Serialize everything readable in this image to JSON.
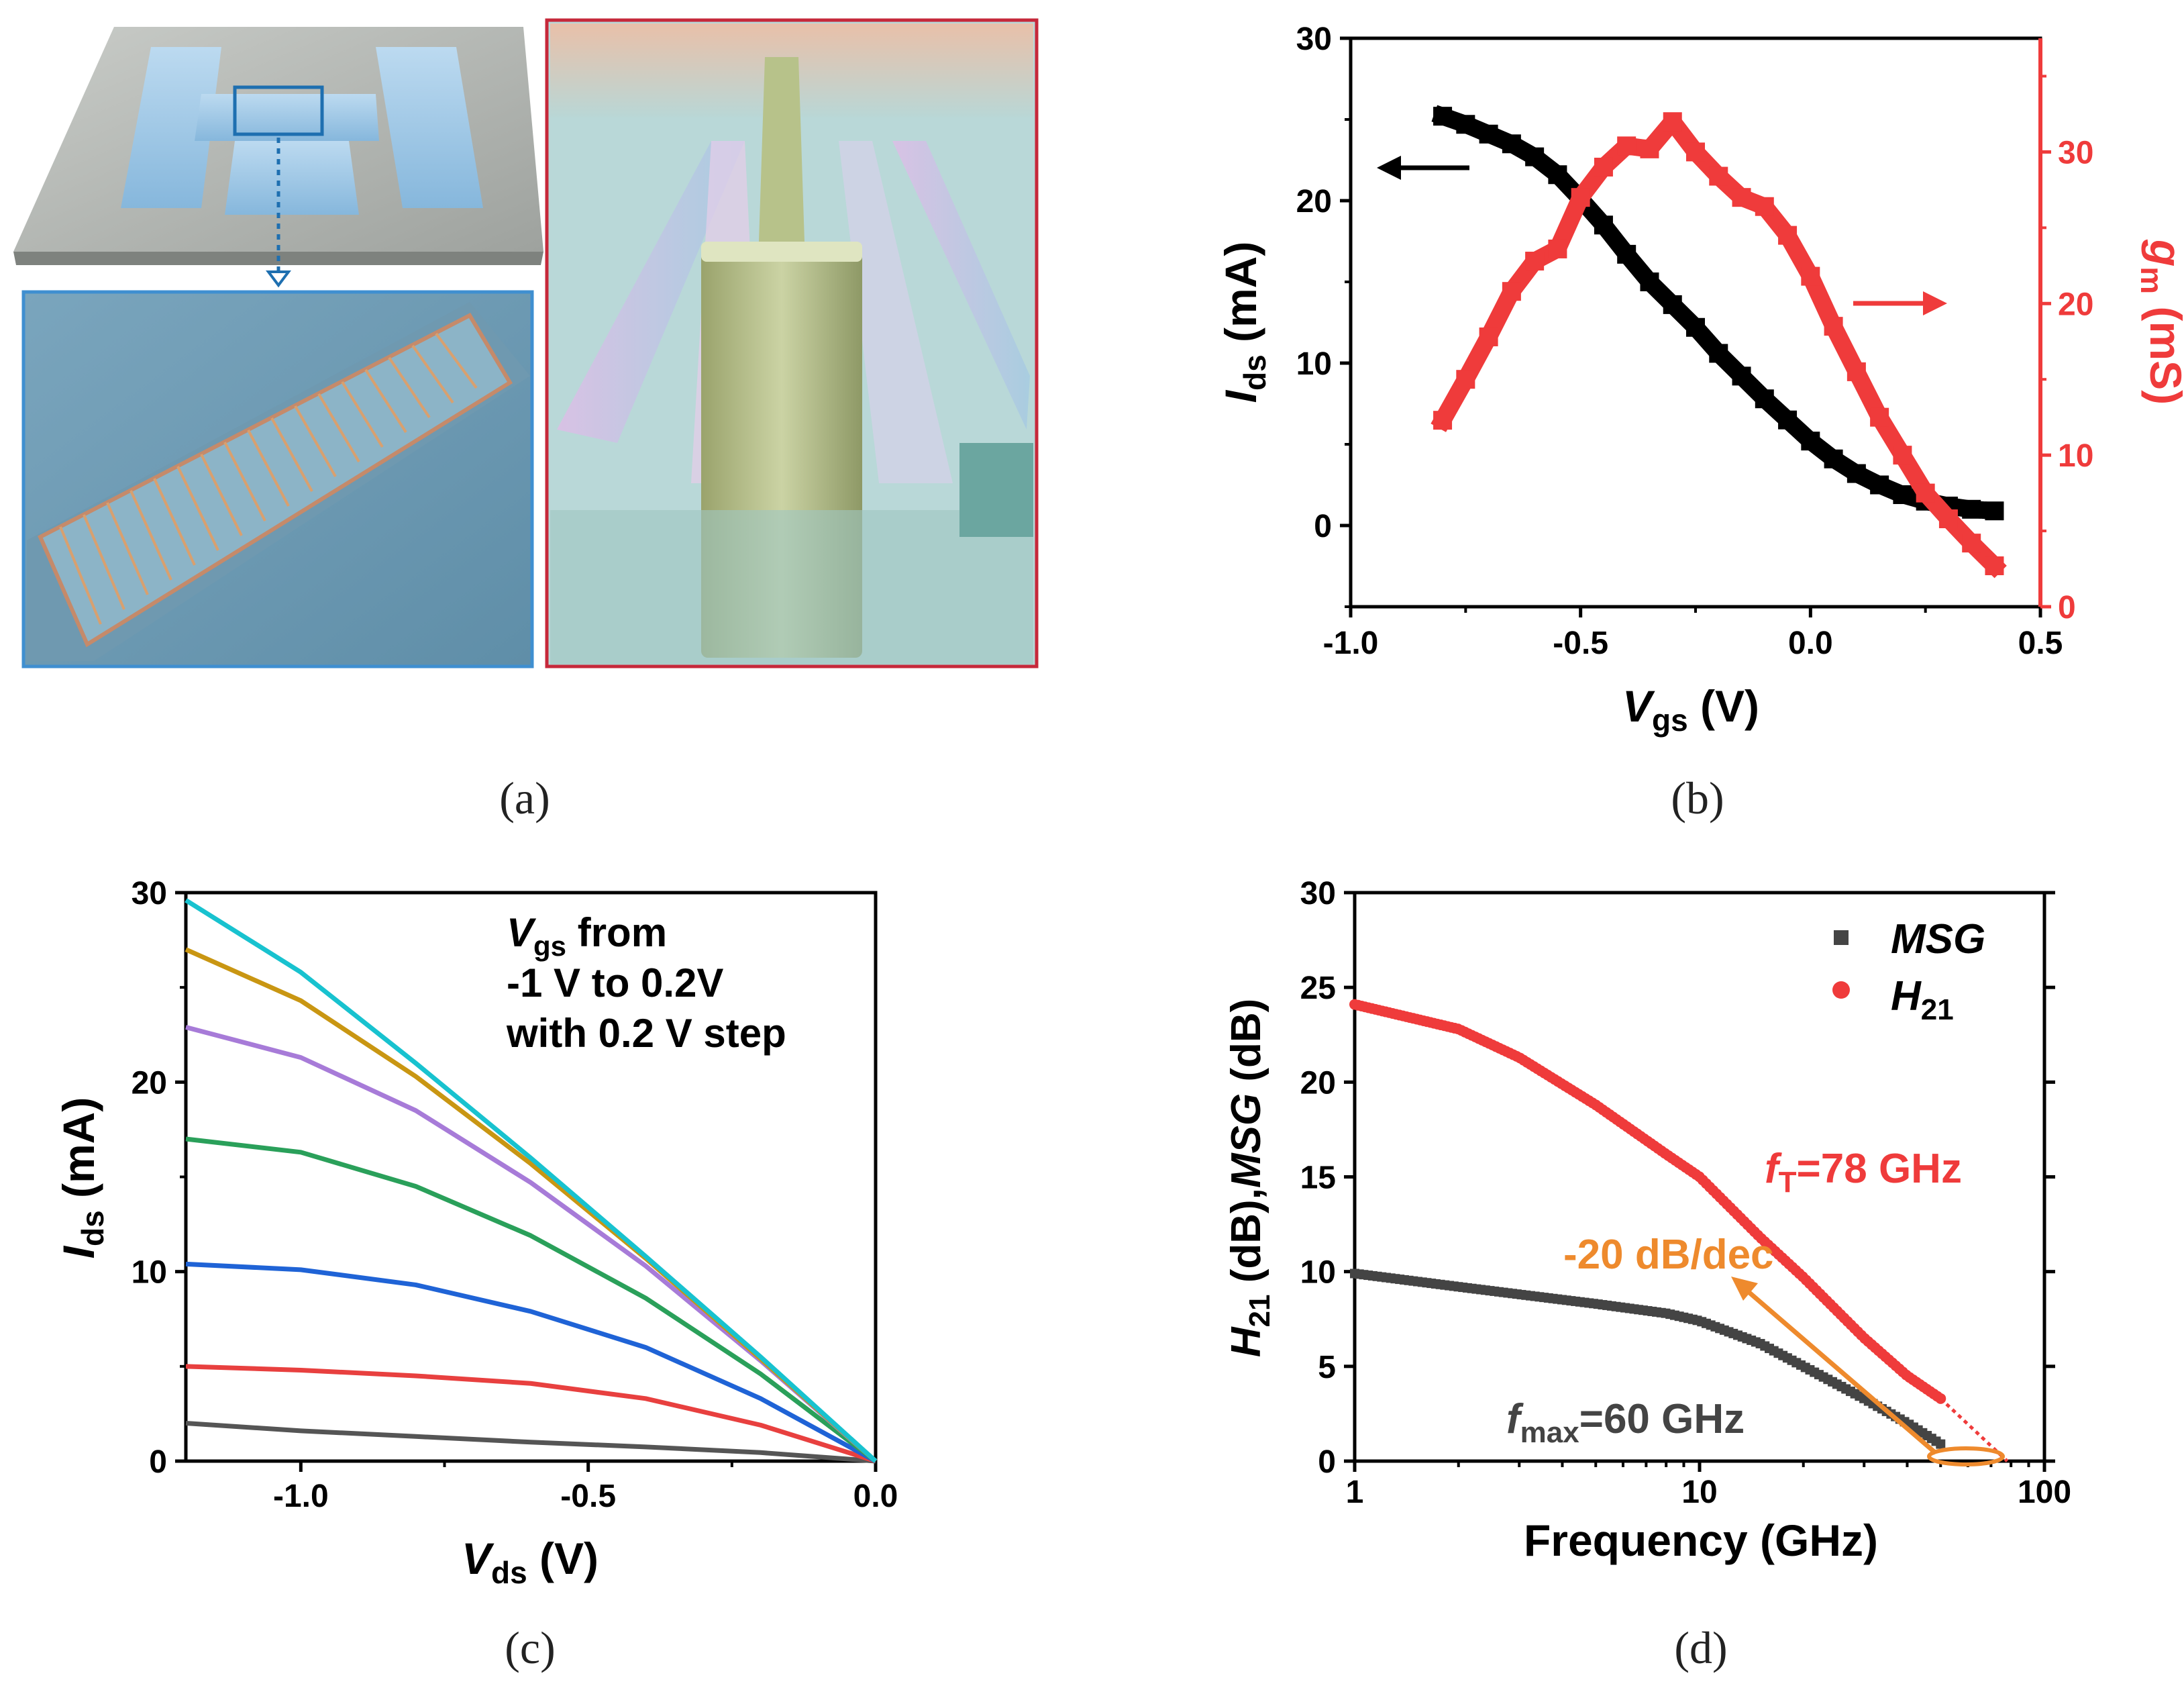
{
  "captions": {
    "a": "(a)",
    "b": "(b)",
    "c": "(c)",
    "d": "(d)"
  },
  "colors": {
    "black": "#000000",
    "red": "#ef3b3b",
    "orange": "#ee8a2d",
    "dark_gray": "#444444",
    "c_gray": "#555555",
    "c_red": "#e8403f",
    "c_blue": "#1f63d6",
    "c_green": "#2aa05a",
    "c_purple": "#a77bd8",
    "c_gold": "#c99612",
    "c_cyan": "#18c2cf"
  },
  "chart_data": [
    {
      "id": "b",
      "type": "line",
      "title": "",
      "xlabel": "Vgs (V)",
      "ylabel_left": "Ids (mA)",
      "ylabel_right": "gm (mS)",
      "xlim": [
        -1.0,
        0.5
      ],
      "ylim_left": [
        -5,
        30
      ],
      "ylim_right": [
        0,
        37.5
      ],
      "x_ticks": [
        "-1.0",
        "-0.5",
        "0.0",
        "0.5"
      ],
      "y_ticks_left": [
        "0",
        "10",
        "20",
        "30"
      ],
      "y_ticks_right": [
        "0",
        "10",
        "20",
        "30"
      ],
      "series": [
        {
          "name": "Ids",
          "axis": "left",
          "color": "#000000",
          "x": [
            -0.8,
            -0.75,
            -0.7,
            -0.65,
            -0.6,
            -0.55,
            -0.5,
            -0.45,
            -0.4,
            -0.35,
            -0.3,
            -0.25,
            -0.2,
            -0.15,
            -0.1,
            -0.05,
            0.0,
            0.05,
            0.1,
            0.15,
            0.2,
            0.25,
            0.3,
            0.35,
            0.4
          ],
          "y": [
            25.2,
            24.7,
            24.1,
            23.5,
            22.7,
            21.6,
            20.1,
            18.5,
            16.7,
            15.0,
            13.6,
            12.2,
            10.6,
            9.2,
            7.8,
            6.5,
            5.2,
            4.1,
            3.2,
            2.5,
            1.9,
            1.5,
            1.2,
            1.0,
            0.9
          ]
        },
        {
          "name": "gm",
          "axis": "right",
          "color": "#ef3b3b",
          "x": [
            -0.8,
            -0.75,
            -0.7,
            -0.65,
            -0.6,
            -0.55,
            -0.5,
            -0.45,
            -0.4,
            -0.35,
            -0.3,
            -0.25,
            -0.2,
            -0.15,
            -0.1,
            -0.05,
            0.0,
            0.05,
            0.1,
            0.15,
            0.2,
            0.25,
            0.3,
            0.35,
            0.4
          ],
          "y": [
            12.3,
            15.0,
            17.8,
            20.8,
            22.8,
            23.6,
            27.0,
            29.0,
            30.4,
            30.2,
            32.0,
            30.0,
            28.4,
            27.0,
            26.4,
            24.5,
            21.8,
            18.5,
            15.5,
            12.5,
            10.0,
            7.5,
            5.8,
            4.2,
            2.7
          ]
        }
      ],
      "annotations": [
        "left arrow -> Ids",
        "right arrow -> gm"
      ]
    },
    {
      "id": "c",
      "type": "line",
      "title": "",
      "xlabel": "Vds (V)",
      "ylabel": "Ids (mA)",
      "xlim": [
        -1.2,
        0.0
      ],
      "ylim": [
        0,
        30
      ],
      "x_ticks": [
        "-1.0",
        "-0.5",
        "0.0"
      ],
      "y_ticks": [
        "0",
        "10",
        "20",
        "30"
      ],
      "legend_text": {
        "line1_sub": "gs",
        "line1_rest": " from",
        "line2": "-1 V to 0.2V",
        "line3": "with 0.2 V step"
      },
      "series": [
        {
          "name": "Vgs=-1.0V",
          "color": "#555555",
          "x": [
            -1.2,
            -1.0,
            -0.8,
            -0.6,
            -0.4,
            -0.2,
            0.0
          ],
          "y": [
            2.0,
            1.6,
            1.3,
            1.0,
            0.75,
            0.45,
            0.0
          ]
        },
        {
          "name": "Vgs=-0.8V",
          "color": "#e8403f",
          "x": [
            -1.2,
            -1.0,
            -0.8,
            -0.6,
            -0.4,
            -0.2,
            0.0
          ],
          "y": [
            5.0,
            4.8,
            4.5,
            4.1,
            3.3,
            1.9,
            0.0
          ]
        },
        {
          "name": "Vgs=-0.6V",
          "color": "#1f63d6",
          "x": [
            -1.2,
            -1.0,
            -0.8,
            -0.6,
            -0.4,
            -0.2,
            0.0
          ],
          "y": [
            10.4,
            10.1,
            9.3,
            7.9,
            6.0,
            3.3,
            0.0
          ]
        },
        {
          "name": "Vgs=-0.4V",
          "color": "#2aa05a",
          "x": [
            -1.2,
            -1.0,
            -0.8,
            -0.6,
            -0.4,
            -0.2,
            0.0
          ],
          "y": [
            17.0,
            16.3,
            14.5,
            11.9,
            8.6,
            4.6,
            0.0
          ]
        },
        {
          "name": "Vgs=-0.2V",
          "color": "#a77bd8",
          "x": [
            -1.2,
            -1.0,
            -0.8,
            -0.6,
            -0.4,
            -0.2,
            0.0
          ],
          "y": [
            22.9,
            21.3,
            18.5,
            14.7,
            10.3,
            5.3,
            0.0
          ]
        },
        {
          "name": "Vgs=0.0V",
          "color": "#c99612",
          "x": [
            -1.2,
            -1.0,
            -0.8,
            -0.6,
            -0.4,
            -0.2,
            0.0
          ],
          "y": [
            27.0,
            24.3,
            20.3,
            15.7,
            10.7,
            5.4,
            0.0
          ]
        },
        {
          "name": "Vgs=0.2V",
          "color": "#18c2cf",
          "x": [
            -1.2,
            -1.0,
            -0.8,
            -0.6,
            -0.4,
            -0.2,
            0.0
          ],
          "y": [
            29.6,
            25.8,
            21.0,
            16.0,
            10.8,
            5.5,
            0.0
          ]
        }
      ]
    },
    {
      "id": "d",
      "type": "scatter",
      "title": "",
      "xlabel": "Frequency (GHz)",
      "ylabel": "H21 (dB),MSG (dB)",
      "xscale": "log",
      "xlim": [
        1,
        100
      ],
      "ylim": [
        0,
        30
      ],
      "x_ticks": [
        "1",
        "10",
        "100"
      ],
      "y_ticks": [
        "0",
        "5",
        "10",
        "15",
        "20",
        "25",
        "30"
      ],
      "legend": [
        {
          "label": "MSG",
          "color": "#444444"
        },
        {
          "label": "H",
          "sub": "21",
          "color": "#ef3b3b"
        }
      ],
      "legend_position": "top-right",
      "series": [
        {
          "name": "MSG",
          "color": "#444444",
          "x": [
            1,
            2,
            3,
            5,
            8,
            10,
            15,
            20,
            30,
            40,
            50
          ],
          "y": [
            9.9,
            9.2,
            8.8,
            8.3,
            7.8,
            7.4,
            6.2,
            5.0,
            3.3,
            2.0,
            0.9
          ]
        },
        {
          "name": "H21",
          "color": "#ef3b3b",
          "x": [
            1,
            2,
            3,
            5,
            8,
            10,
            15,
            20,
            30,
            40,
            50
          ],
          "y": [
            24.1,
            22.8,
            21.3,
            18.8,
            16.2,
            15.0,
            11.8,
            9.7,
            6.5,
            4.5,
            3.3
          ]
        }
      ],
      "extrapolation": {
        "x": [
          50,
          78
        ],
        "y": [
          3.3,
          0.0
        ]
      },
      "annotations": {
        "ft_prefix": "f",
        "ft_sub": "T",
        "ft_value": "=78 GHz",
        "fmax_prefix": "f",
        "fmax_sub": "max",
        "fmax_value": "=60 GHz",
        "slope": "-20 dB/dec"
      }
    }
  ]
}
